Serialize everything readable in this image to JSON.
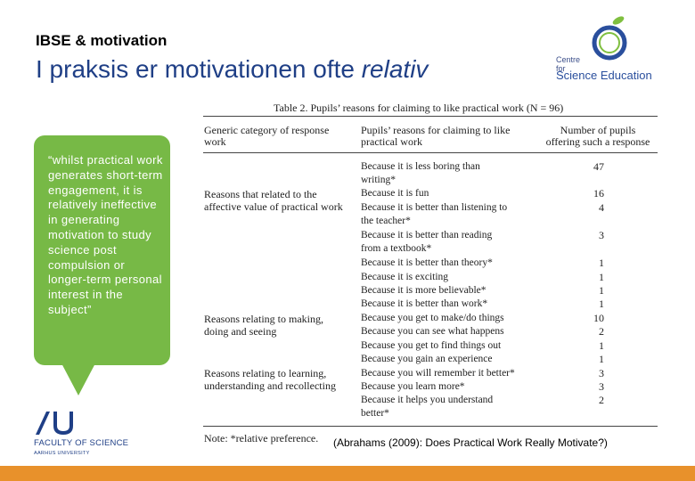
{
  "slide": {
    "kicker": "IBSE & motivation",
    "title_main": "I praksis er motivationen ofte ",
    "title_emphasis": "relativ"
  },
  "logo_cse": {
    "line1": "Centre for",
    "line2": "Science Education"
  },
  "quote": "“whilst practical work generates short-term engagement, it is relatively ineffective in generating motivation to study science post compulsion or longer-term personal interest in the subject”",
  "table": {
    "title": "Table 2.   Pupils’ reasons for claiming to like practical work (N = 96)",
    "headers": {
      "category": [
        "Generic category of response",
        "work"
      ],
      "reason": [
        "Pupils’ reasons for claiming to like",
        "practical work"
      ],
      "number": [
        "Number of pupils",
        "offering such a response"
      ]
    },
    "categories": [
      [
        "Reasons that related to the",
        "affective value of practical work"
      ],
      [
        "Reasons relating to making,",
        "doing and seeing"
      ],
      [
        "Reasons relating to learning,",
        "understanding and recollecting"
      ]
    ],
    "rows": [
      {
        "reason": [
          "Because it is less boring than",
          "writing*"
        ],
        "count": "47"
      },
      {
        "reason": [
          "Because it is fun"
        ],
        "count": "16"
      },
      {
        "reason": [
          "Because it is better than listening to",
          "the teacher*"
        ],
        "count": "4"
      },
      {
        "reason": [
          "Because it is better than reading",
          "from a textbook*"
        ],
        "count": "3"
      },
      {
        "reason": [
          "Because it is better than theory*"
        ],
        "count": "1"
      },
      {
        "reason": [
          "Because it is exciting"
        ],
        "count": "1"
      },
      {
        "reason": [
          "Because it is more believable*"
        ],
        "count": "1"
      },
      {
        "reason": [
          "Because it is better than work*"
        ],
        "count": "1"
      },
      {
        "reason": [
          "Because you get to make/do things"
        ],
        "count": "10"
      },
      {
        "reason": [
          "Because you can see what happens"
        ],
        "count": "2"
      },
      {
        "reason": [
          "Because you get to find things out"
        ],
        "count": "1"
      },
      {
        "reason": [
          "Because you gain an experience"
        ],
        "count": "1"
      },
      {
        "reason": [
          "Because you will remember it better*"
        ],
        "count": "3"
      },
      {
        "reason": [
          "Because you learn more*"
        ],
        "count": "3"
      },
      {
        "reason": [
          "Because it helps you understand",
          "better*"
        ],
        "count": "2"
      }
    ],
    "note": "Note: *relative preference."
  },
  "citation": "(Abrahams (2009):  Does Practical Work Really Motivate?)",
  "logo_au": {
    "faculty": "FACULTY OF SCIENCE",
    "university": "AARHUS UNIVERSITY"
  },
  "colors": {
    "title_blue": "#1f3f86",
    "bubble_green": "#77b946",
    "bar_orange": "#e8912b"
  }
}
